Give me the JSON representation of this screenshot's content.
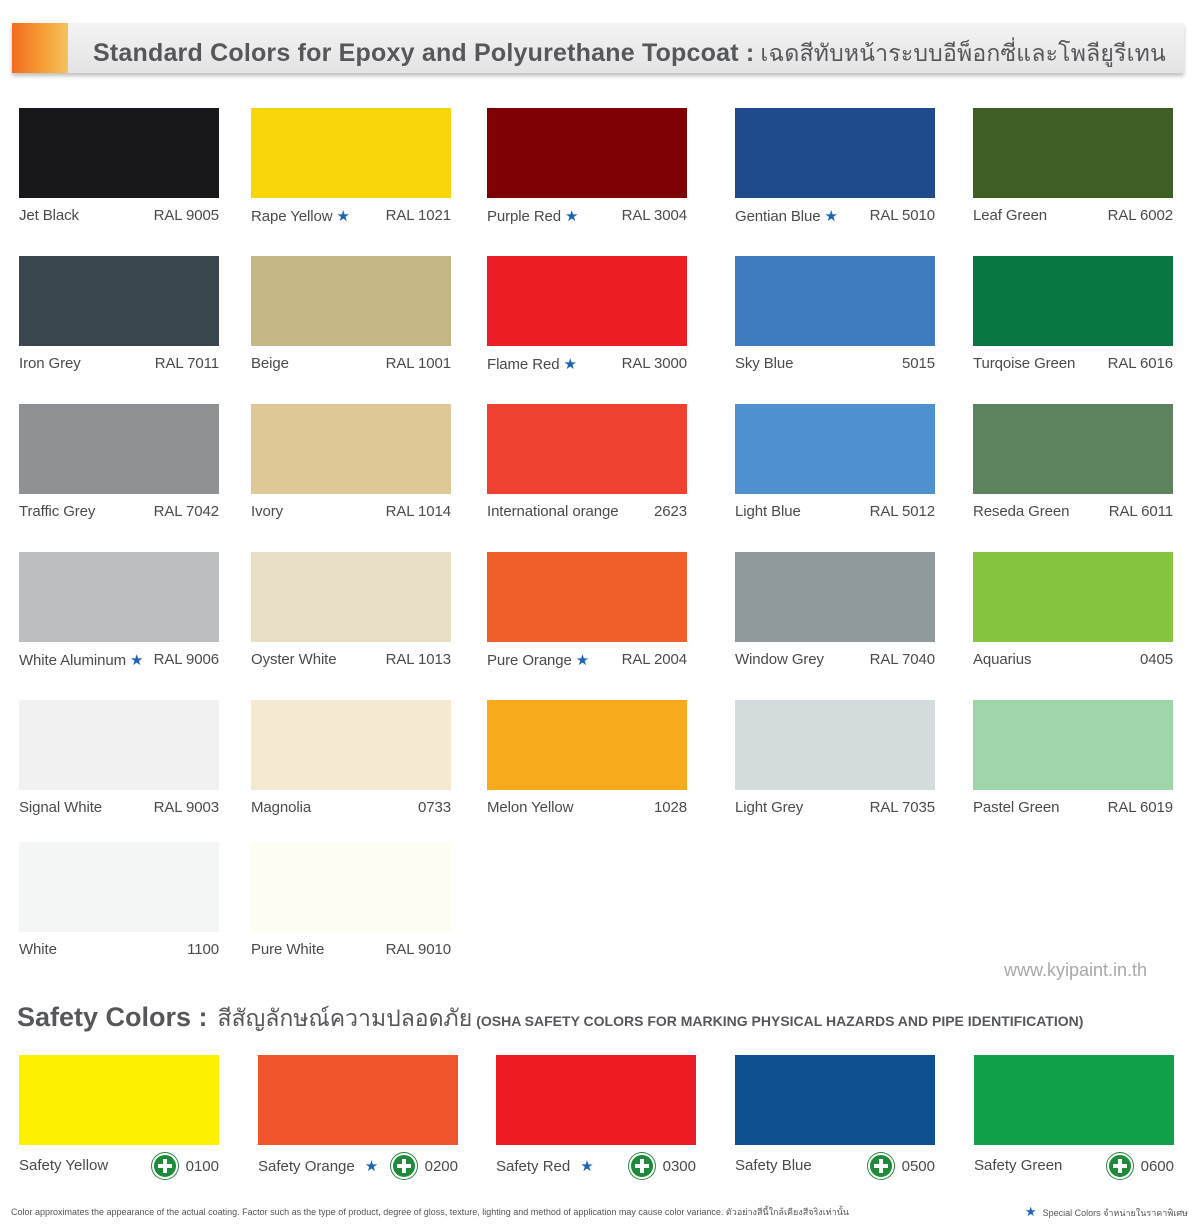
{
  "header": {
    "title": "Standard Colors for Epoxy and Polyurethane Topcoat :",
    "title_thai": "เฉดสีทับหน้าระบบอีพ็อกซี่และโพลียูรีเทน",
    "accent_color": "#f47b20"
  },
  "swatches": [
    {
      "name": "Jet Black",
      "code": "RAL 9005",
      "color": "#18171c",
      "star": false
    },
    {
      "name": "Rape Yellow",
      "code": "RAL 1021",
      "color": "#f8d60a",
      "star": true
    },
    {
      "name": "Purple Red",
      "code": "RAL 3004",
      "color": "#7e0004",
      "star": true
    },
    {
      "name": "Gentian Blue",
      "code": "RAL 5010",
      "color": "#1f4a8c",
      "star": true
    },
    {
      "name": "Leaf Green",
      "code": "RAL 6002",
      "color": "#3e5e26",
      "star": false
    },
    {
      "name": "Iron Grey",
      "code": "RAL 7011",
      "color": "#3a464d",
      "star": false
    },
    {
      "name": "Beige",
      "code": "RAL 1001",
      "color": "#c5b886",
      "star": false
    },
    {
      "name": "Flame Red",
      "code": "RAL 3000",
      "color": "#ec1d24",
      "star": true
    },
    {
      "name": "Sky Blue",
      "code": "5015",
      "color": "#3f7bbf",
      "star": false
    },
    {
      "name": "Turqoise Green",
      "code": "RAL 6016",
      "color": "#087742",
      "star": false
    },
    {
      "name": "Traffic Grey",
      "code": "RAL 7042",
      "color": "#909195",
      "star": false
    },
    {
      "name": "Ivory",
      "code": "RAL 1014",
      "color": "#ddc896",
      "star": false
    },
    {
      "name": "International orange",
      "code": "2623",
      "color": "#ee4130",
      "star": false
    },
    {
      "name": "Light Blue",
      "code": "RAL 5012",
      "color": "#4f90cf",
      "star": false
    },
    {
      "name": "Reseda Green",
      "code": "RAL 6011",
      "color": "#5d835e",
      "star": false
    },
    {
      "name": "White Aluminum",
      "code": "RAL 9006",
      "color": "#bdbec0",
      "star": true
    },
    {
      "name": "Oyster White",
      "code": "RAL 1013",
      "color": "#e9dfc7",
      "star": false
    },
    {
      "name": "Pure Orange",
      "code": "RAL 2004",
      "color": "#f05f2a",
      "star": true
    },
    {
      "name": "Window Grey",
      "code": "RAL 7040",
      "color": "#8e9a9c",
      "star": false
    },
    {
      "name": "Aquarius",
      "code": "0405",
      "color": "#87c53f",
      "star": false
    },
    {
      "name": "Signal White",
      "code": "RAL 9003",
      "color": "#f1f1f2",
      "star": false
    },
    {
      "name": "Magnolia",
      "code": "0733",
      "color": "#f6e9d2",
      "star": false
    },
    {
      "name": "Melon Yellow",
      "code": "1028",
      "color": "#f8ab1c",
      "star": false
    },
    {
      "name": "Light Grey",
      "code": "RAL 7035",
      "color": "#d5dcdd",
      "star": false
    },
    {
      "name": "Pastel Green",
      "code": "RAL 6019",
      "color": "#9ed5a9",
      "star": false
    },
    {
      "name": "White",
      "code": "1100",
      "color": "#f4f5f5",
      "star": false
    },
    {
      "name": "Pure White",
      "code": "RAL 9010",
      "color": "#fdfdf1",
      "star": false
    }
  ],
  "website": "www.kyipaint.in.th",
  "safety": {
    "heading": "Safety Colors :",
    "heading_thai": "สีสัญลักษณ์ความปลอดภัย",
    "osha": "(OSHA SAFETY COLORS FOR MARKING PHYSICAL HAZARDS AND PIPE IDENTIFICATION)",
    "items": [
      {
        "name": "Safety Yellow",
        "code": "0100",
        "color": "#fff200",
        "star": false
      },
      {
        "name": "Safety Orange",
        "code": "0200",
        "color": "#f0542a",
        "star": true
      },
      {
        "name": "Safety Red",
        "code": "0300",
        "color": "#ec1b24",
        "star": true
      },
      {
        "name": "Safety Blue",
        "code": "0500",
        "color": "#0e4f8d",
        "star": false
      },
      {
        "name": "Safety Green",
        "code": "0600",
        "color": "#10a14a",
        "star": false
      }
    ]
  },
  "footnote": {
    "left": "Color approximates the appearance of the actual coating. Factor such as the type of product, degree of gloss, texture, lighting and method of application may cause color variance. ตัวอย่างสีนี้ใกล้เคียงสีจริงเท่านั้น",
    "right": "Special Colors จำหน่ายในราคาพิเศษ"
  }
}
